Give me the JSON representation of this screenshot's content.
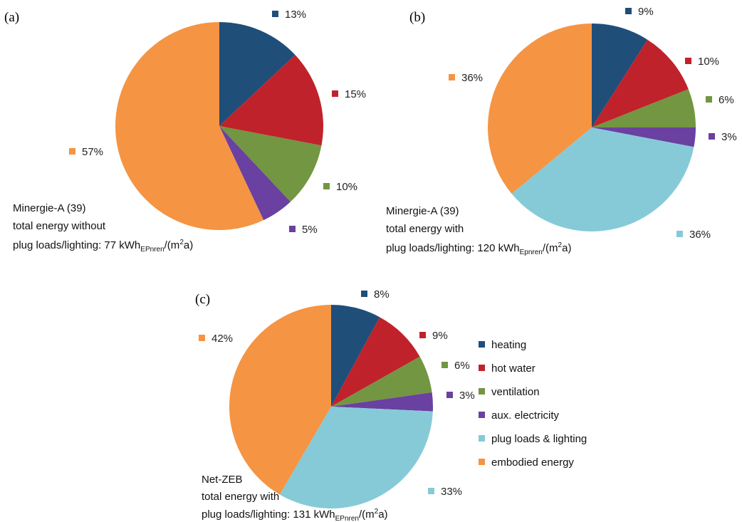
{
  "colors": {
    "heating": "#1f4e79",
    "hot_water": "#c0222b",
    "ventilation": "#729641",
    "aux_electricity": "#6a40a0",
    "plug_loads_lighting": "#86cad8",
    "embodied_energy": "#f59443"
  },
  "legend": {
    "items": [
      {
        "key": "heating",
        "label": "heating"
      },
      {
        "key": "hot_water",
        "label": "hot water"
      },
      {
        "key": "ventilation",
        "label": "ventilation"
      },
      {
        "key": "aux_electricity",
        "label": "aux. electricity"
      },
      {
        "key": "plug_loads_lighting",
        "label": "plug loads & lighting"
      },
      {
        "key": "embodied_energy",
        "label": "embodied energy"
      }
    ]
  },
  "chart_data": [
    {
      "type": "pie",
      "panel": "(a)",
      "title_lines": [
        "Minergie-A (39)",
        "total energy without"
      ],
      "value_line": {
        "prefix": "plug loads/lighting: 77 kWh",
        "sub": "EPnren",
        "mid": "/(m",
        "sup": "2",
        "suffix": "a)"
      },
      "slices": [
        {
          "key": "heating",
          "value": 13,
          "label": "13%"
        },
        {
          "key": "hot_water",
          "value": 15,
          "label": "15%"
        },
        {
          "key": "ventilation",
          "value": 10,
          "label": "10%"
        },
        {
          "key": "aux_electricity",
          "value": 5,
          "label": "5%"
        },
        {
          "key": "embodied_energy",
          "value": 57,
          "label": "57%"
        }
      ]
    },
    {
      "type": "pie",
      "panel": "(b)",
      "title_lines": [
        "Minergie-A (39)",
        "total energy with"
      ],
      "value_line": {
        "prefix": "plug loads/lighting: 120 kWh",
        "sub": "Epnren",
        "mid": "/(m",
        "sup": "2",
        "suffix": "a)"
      },
      "slices": [
        {
          "key": "heating",
          "value": 9,
          "label": "9%"
        },
        {
          "key": "hot_water",
          "value": 10,
          "label": "10%"
        },
        {
          "key": "ventilation",
          "value": 6,
          "label": "6%"
        },
        {
          "key": "aux_electricity",
          "value": 3,
          "label": "3%"
        },
        {
          "key": "plug_loads_lighting",
          "value": 36,
          "label": "36%"
        },
        {
          "key": "embodied_energy",
          "value": 36,
          "label": "36%"
        }
      ]
    },
    {
      "type": "pie",
      "panel": "(c)",
      "title_lines": [
        "Net-ZEB",
        "total energy with"
      ],
      "value_line": {
        "prefix": "plug loads/lighting: 131 kWh",
        "sub": "EPnren",
        "mid": "/(m",
        "sup": "2",
        "suffix": "a)"
      },
      "slices": [
        {
          "key": "heating",
          "value": 8,
          "label": "8%"
        },
        {
          "key": "hot_water",
          "value": 9,
          "label": "9%"
        },
        {
          "key": "ventilation",
          "value": 6,
          "label": "6%"
        },
        {
          "key": "aux_electricity",
          "value": 3,
          "label": "3%"
        },
        {
          "key": "plug_loads_lighting",
          "value": 33,
          "label": "33%"
        },
        {
          "key": "embodied_energy",
          "value": 42,
          "label": "42%"
        }
      ]
    }
  ]
}
